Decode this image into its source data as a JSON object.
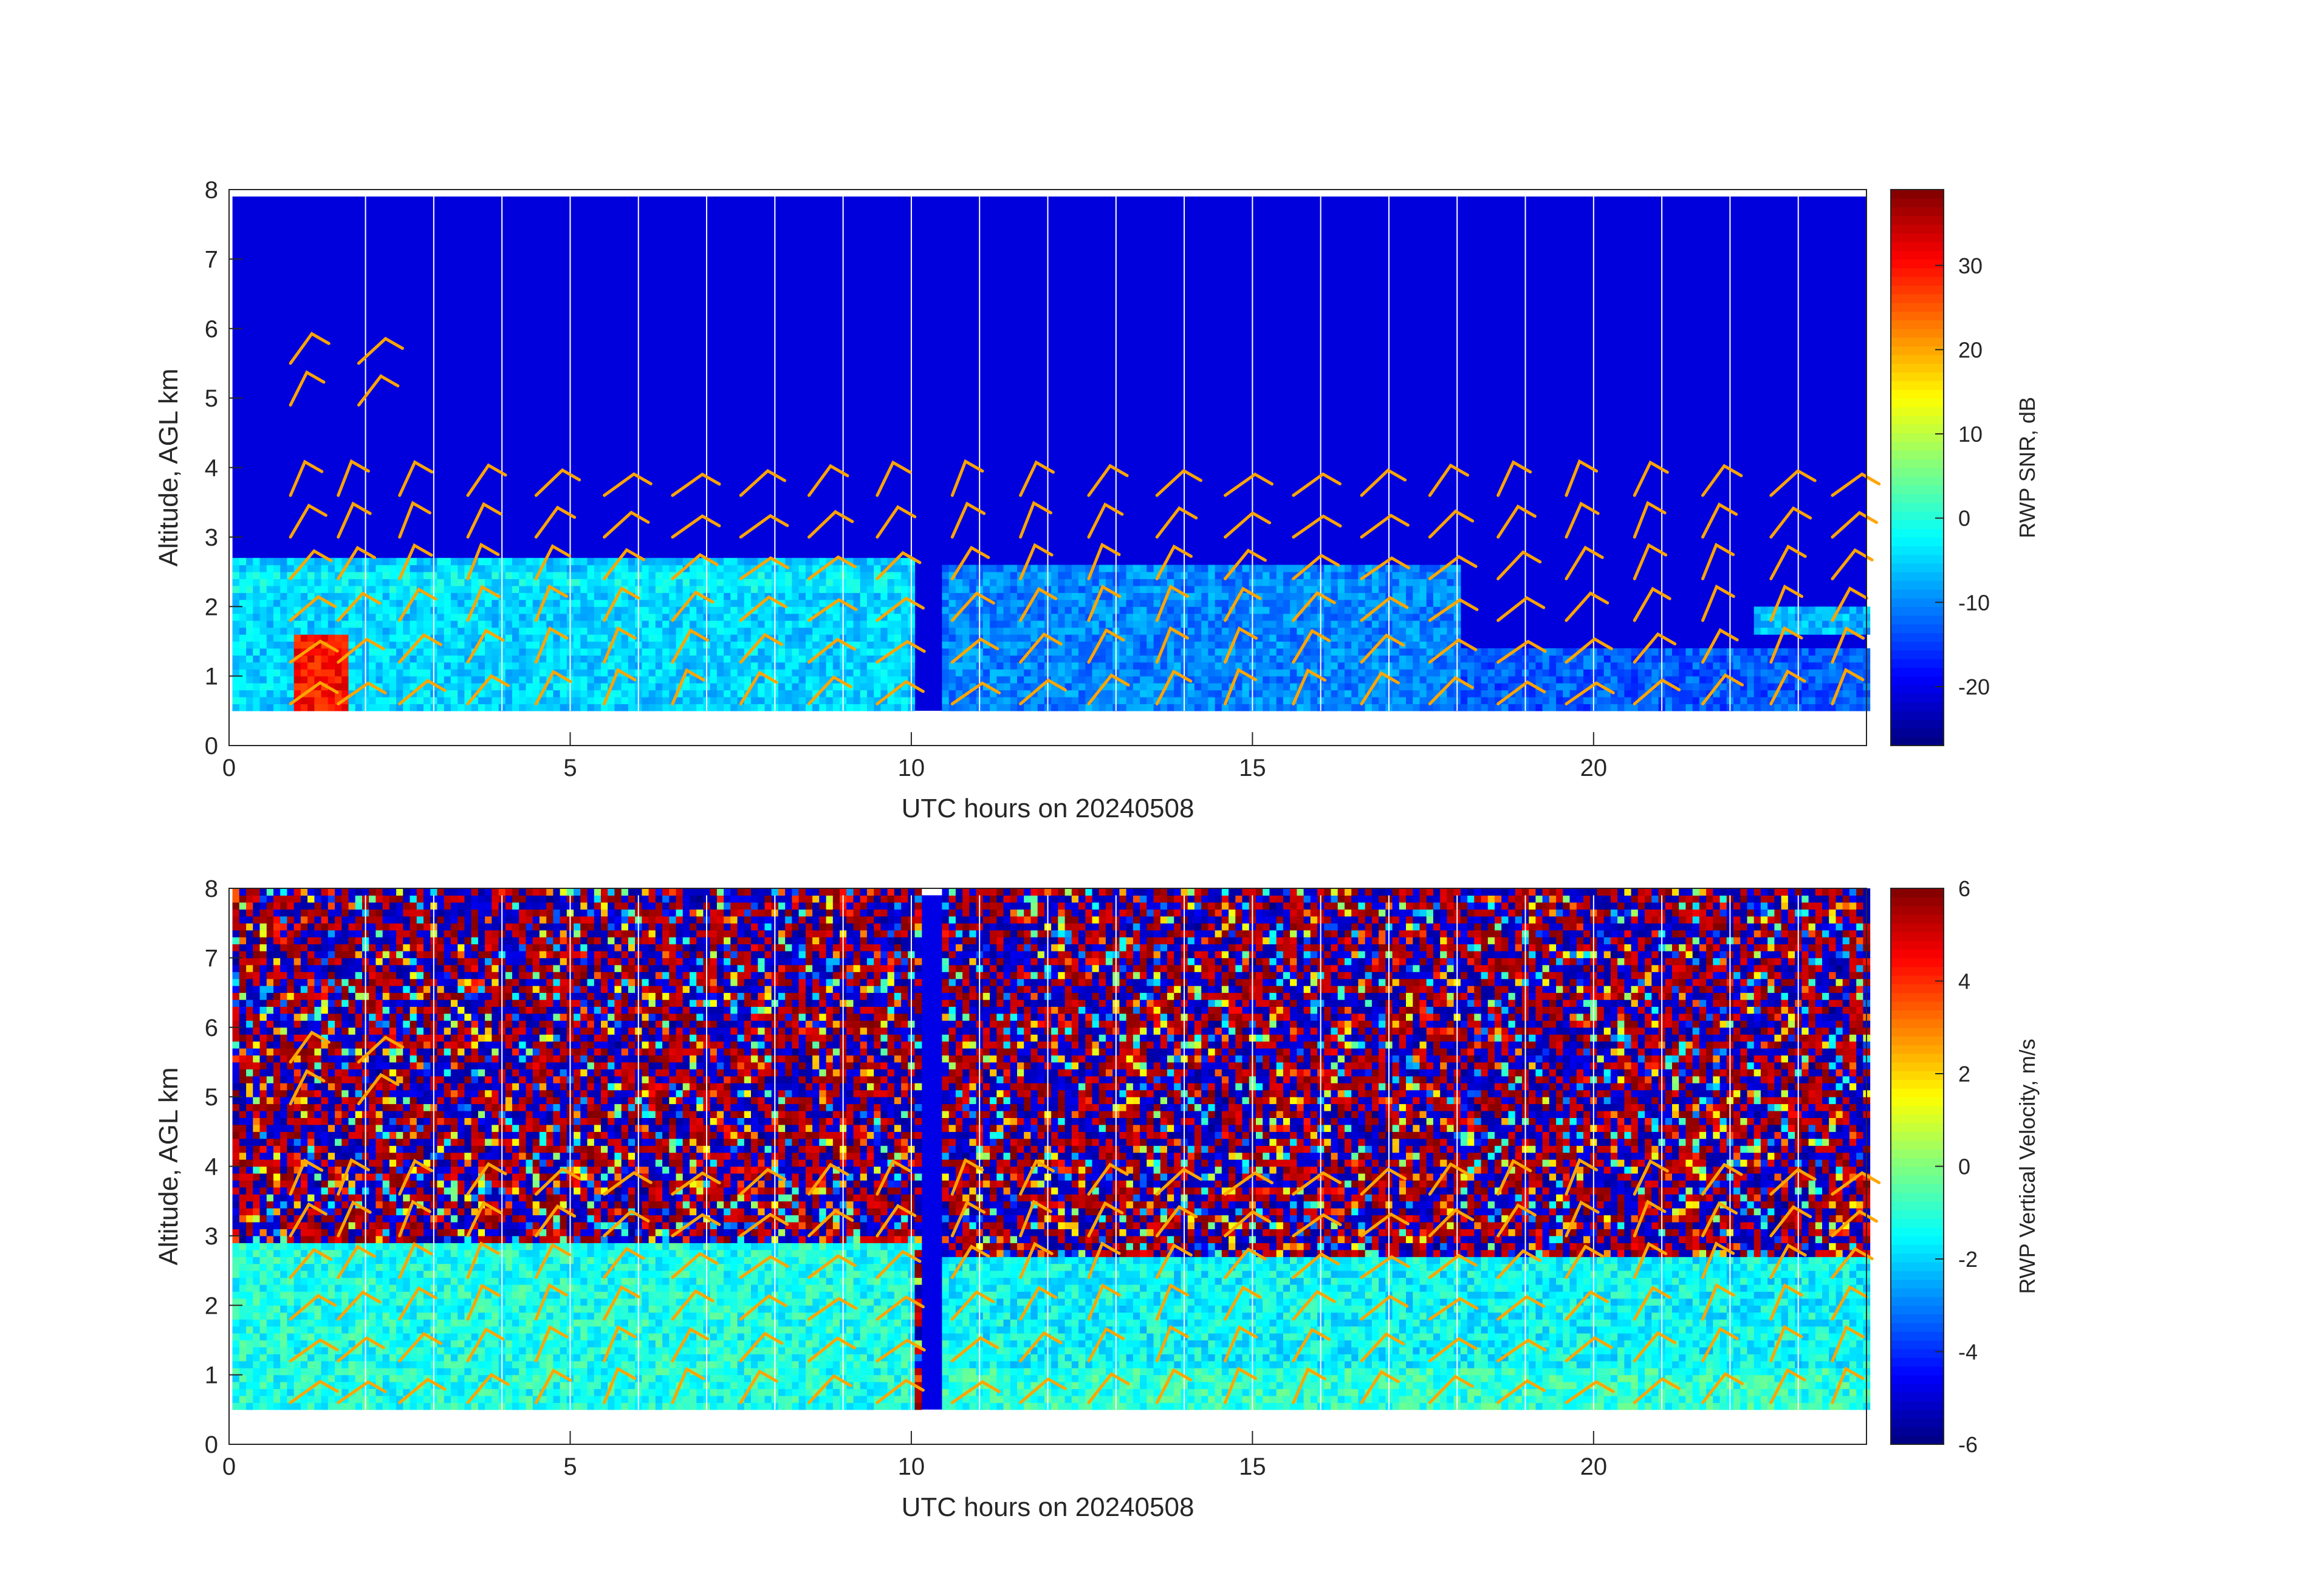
{
  "figure": {
    "background": "#ffffff",
    "barb_color": "#FFA500"
  },
  "chart_data": [
    {
      "type": "heatmap",
      "name": "snr",
      "xlabel": "UTC hours on 20240508",
      "ylabel": "Altitude, AGL km",
      "colorbar_label": "RWP SNR, dB",
      "xlim": [
        0,
        24
      ],
      "ylim": [
        0,
        8
      ],
      "xticks": [
        0,
        5,
        10,
        15,
        20
      ],
      "yticks": [
        0,
        1,
        2,
        3,
        4,
        5,
        6,
        7,
        8
      ],
      "clim": [
        -27,
        39
      ],
      "colorbar_ticks": [
        -20,
        -10,
        0,
        10,
        20,
        30
      ],
      "colormap": "jet",
      "data_altitude_range_km": [
        0.5,
        7.9
      ],
      "gaps_utc_hours": [
        [
          10.05,
          10.4
        ]
      ],
      "layers": [
        {
          "description_value": "background",
          "snr_db": -21
        },
        {
          "altitude_km": [
            0.5,
            2.7
          ],
          "utc": [
            0,
            10
          ],
          "snr_db": -5
        },
        {
          "altitude_km": [
            2.2,
            2.5
          ],
          "utc": [
            0,
            10
          ],
          "snr_db": -3
        },
        {
          "altitude_km": [
            0.5,
            1.6
          ],
          "utc": [
            0.9,
            1.7
          ],
          "snr_db": 30
        },
        {
          "altitude_km": [
            0.5,
            2.6
          ],
          "utc": [
            10.4,
            18
          ],
          "snr_db": -10
        },
        {
          "altitude_km": [
            0.5,
            1.4
          ],
          "utc": [
            18,
            24
          ],
          "snr_db": -13
        },
        {
          "altitude_km": [
            1.6,
            2.0
          ],
          "utc": [
            22.3,
            24
          ],
          "snr_db": -7
        }
      ],
      "wind_barbs": {
        "times_utc": [
          0.9,
          1.6,
          2.5,
          3.5,
          4.5,
          5.5,
          6.5,
          7.5,
          8.5,
          9.5,
          10.6,
          11.6,
          12.6,
          13.6,
          14.6,
          15.6,
          16.6,
          17.6,
          18.6,
          19.6,
          20.6,
          21.6,
          22.6,
          23.5
        ],
        "altitudes_km": [
          0.6,
          1.2,
          1.8,
          2.4,
          3.0,
          3.6
        ],
        "upper_level_altitudes_km": [
          4.9,
          5.5
        ],
        "upper_level_times_utc": [
          0.9,
          1.9
        ]
      }
    },
    {
      "type": "heatmap",
      "name": "vertical-velocity",
      "xlabel": "UTC hours on 20240508",
      "ylabel": "Altitude, AGL km",
      "colorbar_label": "RWP Vertical Velocity, m/s",
      "xlim": [
        0,
        24
      ],
      "ylim": [
        0,
        8
      ],
      "xticks": [
        0,
        5,
        10,
        15,
        20
      ],
      "yticks": [
        0,
        1,
        2,
        3,
        4,
        5,
        6,
        7,
        8
      ],
      "clim": [
        -6,
        6
      ],
      "colorbar_ticks": [
        -6,
        -4,
        -2,
        0,
        2,
        4,
        6
      ],
      "colormap": "jet",
      "data_altitude_range_km": [
        0.5,
        7.9
      ],
      "gaps_utc_hours": [
        [
          10.05,
          10.4
        ]
      ],
      "layers": [
        {
          "description_value": "noise above boundary layer",
          "velocity_ms": [
            -6,
            6
          ]
        },
        {
          "altitude_km": [
            0.5,
            2.85
          ],
          "utc": [
            0,
            10
          ],
          "velocity_ms": -1.2
        },
        {
          "altitude_km": [
            0.5,
            2.7
          ],
          "utc": [
            10.4,
            24
          ],
          "velocity_ms": -1.5
        },
        {
          "altitude_km": [
            0.5,
            1.0
          ],
          "utc": [
            10.4,
            24
          ],
          "velocity_ms": -1.0
        }
      ],
      "wind_barbs": {
        "times_utc": [
          0.9,
          1.6,
          2.5,
          3.5,
          4.5,
          5.5,
          6.5,
          7.5,
          8.5,
          9.5,
          10.6,
          11.6,
          12.6,
          13.6,
          14.6,
          15.6,
          16.6,
          17.6,
          18.6,
          19.6,
          20.6,
          21.6,
          22.6,
          23.5
        ],
        "altitudes_km": [
          0.6,
          1.2,
          1.8,
          2.4,
          3.0,
          3.6
        ],
        "upper_level_altitudes_km": [
          4.9,
          5.5
        ],
        "upper_level_times_utc": [
          0.9,
          1.9
        ]
      }
    }
  ]
}
